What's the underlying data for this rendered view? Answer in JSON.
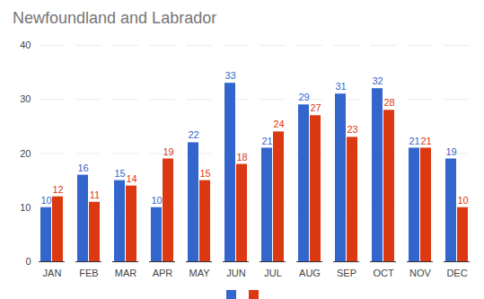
{
  "chart_data": {
    "type": "bar",
    "title": "Newfoundland and Labrador",
    "categories": [
      "JAN",
      "FEB",
      "MAR",
      "APR",
      "MAY",
      "JUN",
      "JUL",
      "AUG",
      "SEP",
      "OCT",
      "NOV",
      "DEC"
    ],
    "series": [
      {
        "color": "#3366cc",
        "values": [
          10,
          16,
          15,
          10,
          22,
          33,
          21,
          29,
          31,
          32,
          21,
          19
        ]
      },
      {
        "color": "#dc3912",
        "values": [
          12,
          11,
          14,
          19,
          15,
          18,
          24,
          27,
          23,
          28,
          21,
          10
        ]
      }
    ],
    "ylim": [
      0,
      40
    ],
    "yticks": [
      0,
      10,
      20,
      30,
      40
    ],
    "grid": true,
    "data_labels": true,
    "legend": "bottom"
  }
}
